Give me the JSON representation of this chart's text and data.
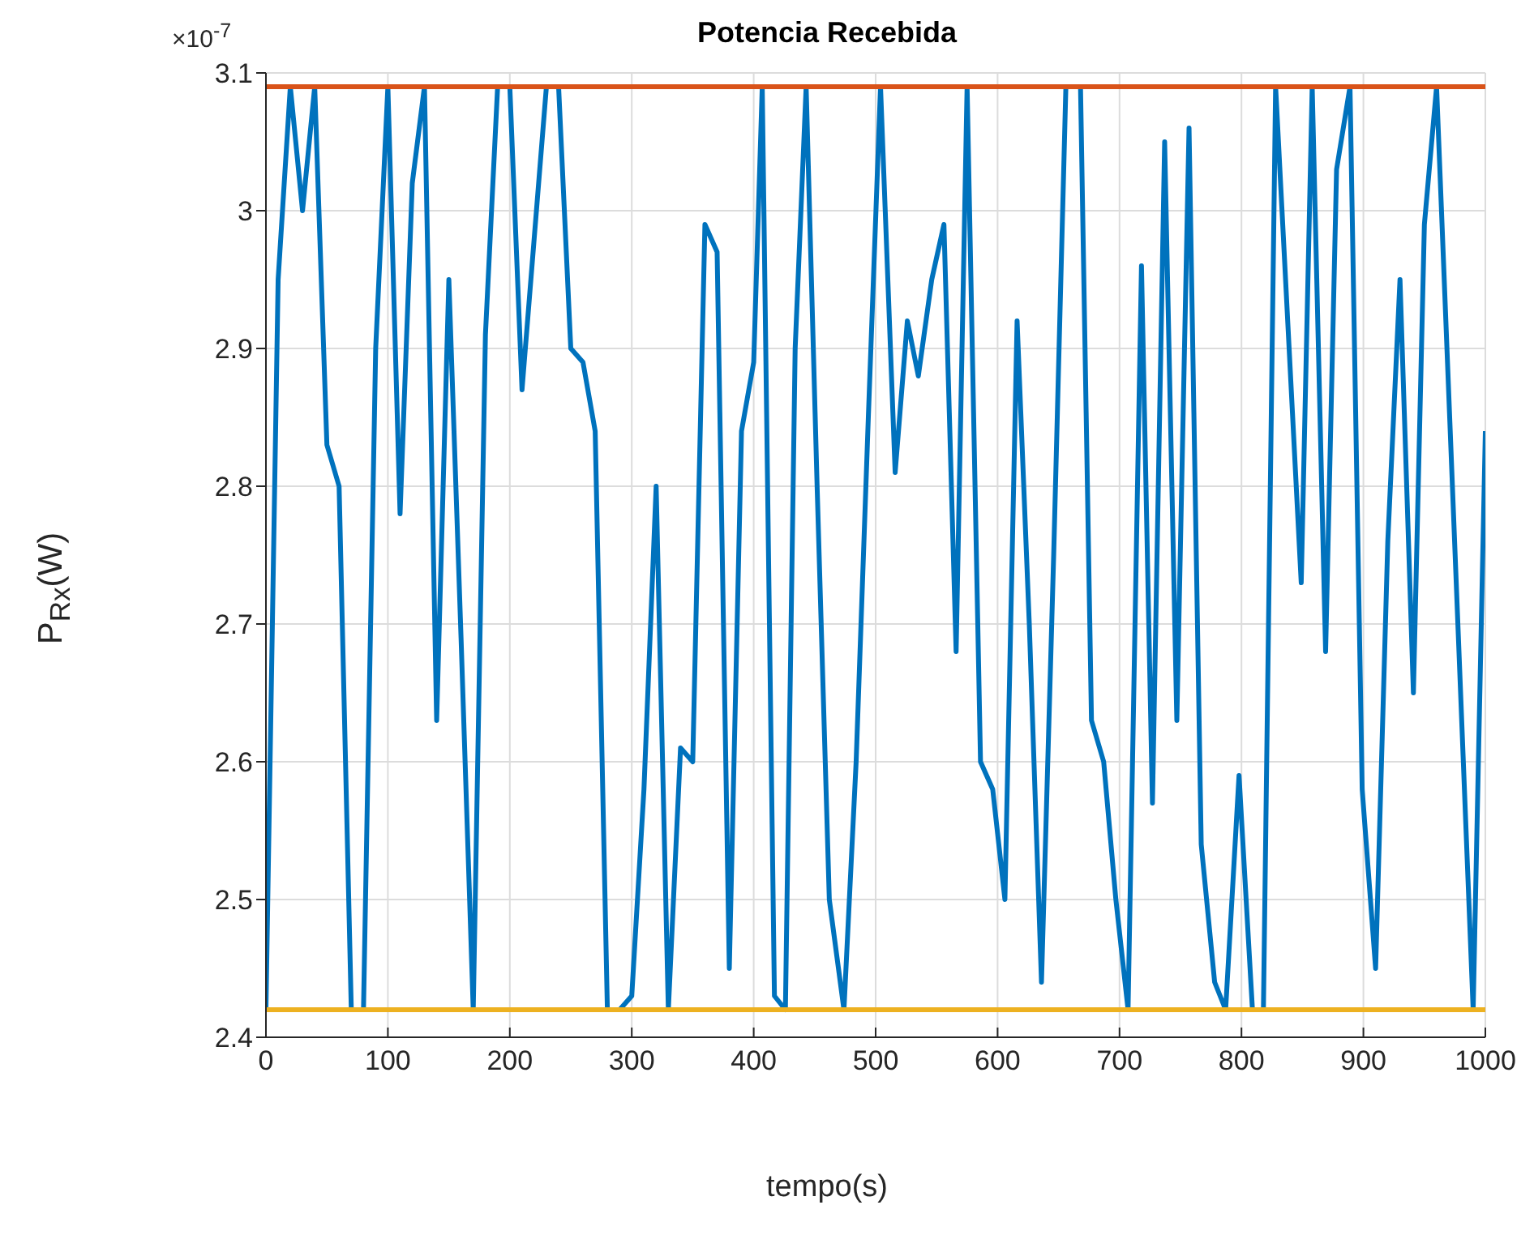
{
  "chart_data": {
    "type": "line",
    "title": "Potencia Recebida",
    "xlabel": "tempo(s)",
    "ylabel": "P$_{Rx}$(W)",
    "annotations": [
      "×10$^{-7}$"
    ],
    "xlim": [
      0,
      1000
    ],
    "xticks": [
      0,
      100,
      200,
      300,
      400,
      500,
      600,
      700,
      800,
      900,
      1000
    ],
    "ylim": [
      2.4,
      3.1
    ],
    "yticks": [
      2.4,
      2.5,
      2.6,
      2.7,
      2.8,
      2.9,
      3,
      3.1
    ],
    "grid": true,
    "marker": "none",
    "line_style": "solid",
    "series": [
      {
        "color": "#0072bd",
        "x": [
          0,
          10,
          20,
          30,
          40,
          50,
          60,
          70,
          80,
          90,
          100,
          110,
          120,
          130,
          140,
          150,
          160,
          170,
          180,
          190,
          200,
          210,
          220,
          230,
          240,
          250,
          260,
          270,
          280,
          290,
          300,
          310,
          320,
          330,
          340,
          350,
          360,
          370,
          380,
          390,
          400,
          407,
          417,
          426,
          434,
          443,
          452,
          462,
          474,
          484,
          494,
          504,
          516,
          526,
          535,
          546,
          556,
          566,
          575,
          586,
          596,
          606,
          616,
          626,
          636,
          646,
          656,
          668,
          677,
          687,
          697,
          707,
          718,
          727,
          737,
          747,
          757,
          767,
          778,
          787,
          798,
          809,
          818,
          828,
          849,
          858,
          869,
          878,
          889,
          899,
          910,
          920,
          930,
          941,
          950,
          960,
          990,
          1000
        ],
        "values": [
          2.42,
          2.95,
          3.09,
          3.0,
          3.09,
          2.83,
          2.8,
          2.42,
          2.42,
          2.9,
          3.09,
          2.78,
          3.02,
          3.09,
          2.63,
          2.95,
          2.69,
          2.42,
          2.91,
          3.09,
          3.09,
          2.87,
          2.98,
          3.09,
          3.09,
          2.9,
          2.89,
          2.84,
          2.42,
          2.42,
          2.43,
          2.58,
          2.8,
          2.42,
          2.61,
          2.6,
          2.99,
          2.97,
          2.45,
          2.84,
          2.89,
          3.09,
          2.43,
          2.42,
          2.9,
          3.09,
          2.8,
          2.5,
          2.42,
          2.6,
          2.85,
          3.09,
          2.81,
          2.92,
          2.88,
          2.95,
          2.99,
          2.68,
          3.09,
          2.6,
          2.58,
          2.5,
          2.92,
          2.7,
          2.44,
          2.75,
          3.09,
          3.09,
          2.63,
          2.6,
          2.5,
          2.42,
          2.96,
          2.57,
          3.05,
          2.63,
          3.06,
          2.54,
          2.44,
          2.42,
          2.59,
          2.42,
          2.42,
          3.09,
          2.73,
          3.09,
          2.68,
          3.03,
          3.09,
          2.58,
          2.45,
          2.76,
          2.95,
          2.65,
          2.99,
          3.09,
          2.42,
          2.84
        ]
      },
      {
        "color": "#d95319",
        "x": [
          0,
          1000
        ],
        "values": [
          3.09,
          3.09
        ]
      },
      {
        "color": "#edb120",
        "x": [
          0,
          1000
        ],
        "values": [
          2.42,
          2.42
        ]
      }
    ]
  }
}
